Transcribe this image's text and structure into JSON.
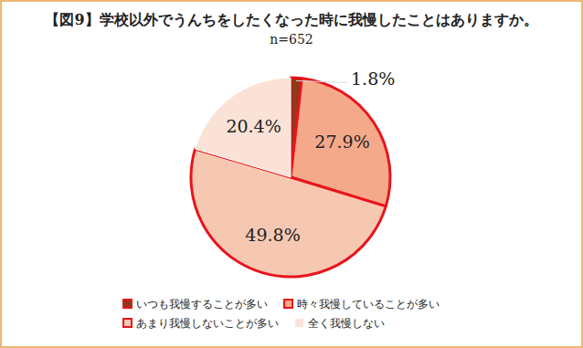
{
  "chart_data": {
    "type": "pie",
    "title": "【図9】学校以外でうんちをしたくなった時に我慢したことはありますか。",
    "subtitle": "n=652",
    "categories": [
      "いつも我慢することが多い",
      "時々我慢していることが多い",
      "あまり我慢しないことが多い",
      "全く我慢しない"
    ],
    "values": [
      1.8,
      27.9,
      49.8,
      20.4
    ],
    "value_labels": [
      "1.8%",
      "27.9%",
      "49.8%",
      "20.4%"
    ],
    "colors": [
      "#8b3a1a",
      "#f4a98a",
      "#f7c8b1",
      "#fbe2d6"
    ],
    "data_labels": true,
    "legend": "bottom"
  }
}
